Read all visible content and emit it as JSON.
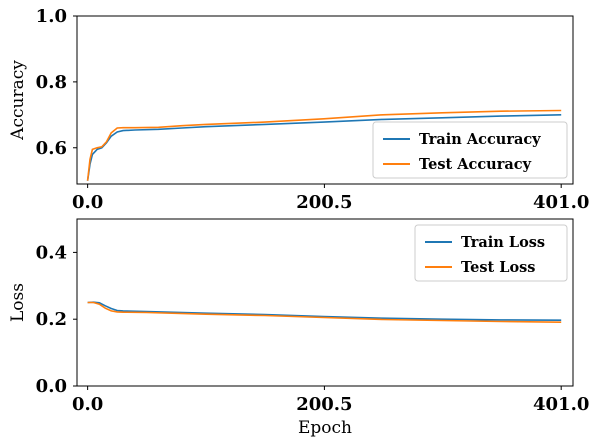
{
  "chart_data": [
    {
      "type": "line",
      "title": "",
      "xlabel": "",
      "ylabel": "Accuracy",
      "xlim": [
        -9,
        411
      ],
      "ylim": [
        0.49,
        1.0
      ],
      "xticks": [
        0.0,
        200.5,
        401.0
      ],
      "xtick_labels": [
        "0.0",
        "200.5",
        "401.0"
      ],
      "yticks": [
        0.6,
        0.8,
        1.0
      ],
      "ytick_labels": [
        "0.6",
        "0.8",
        "1.0"
      ],
      "legend_position": "lower-right",
      "grid": false,
      "series": [
        {
          "name": "Train Accuracy",
          "color": "#1f77b4",
          "x": [
            0,
            2,
            4,
            8,
            12,
            16,
            20,
            25,
            30,
            40,
            60,
            80,
            100,
            150,
            200,
            250,
            300,
            350,
            401
          ],
          "y": [
            0.5,
            0.55,
            0.58,
            0.595,
            0.6,
            0.615,
            0.635,
            0.648,
            0.652,
            0.654,
            0.656,
            0.66,
            0.664,
            0.671,
            0.678,
            0.686,
            0.691,
            0.696,
            0.7
          ]
        },
        {
          "name": "Test Accuracy",
          "color": "#ff7f0e",
          "x": [
            0,
            2,
            4,
            8,
            12,
            16,
            20,
            25,
            30,
            40,
            60,
            80,
            100,
            150,
            200,
            250,
            300,
            350,
            401
          ],
          "y": [
            0.5,
            0.565,
            0.595,
            0.6,
            0.603,
            0.618,
            0.645,
            0.66,
            0.661,
            0.661,
            0.662,
            0.667,
            0.671,
            0.678,
            0.688,
            0.7,
            0.706,
            0.711,
            0.713
          ]
        }
      ]
    },
    {
      "type": "line",
      "title": "",
      "xlabel": "Epoch",
      "ylabel": "Loss",
      "xlim": [
        -9,
        411
      ],
      "ylim": [
        0.0,
        0.5
      ],
      "xticks": [
        0.0,
        200.5,
        401.0
      ],
      "xtick_labels": [
        "0.0",
        "200.5",
        "401.0"
      ],
      "yticks": [
        0.0,
        0.2,
        0.4
      ],
      "ytick_labels": [
        "0.0",
        "0.2",
        "0.4"
      ],
      "legend_position": "upper-right",
      "grid": false,
      "series": [
        {
          "name": "Train Loss",
          "color": "#1f77b4",
          "x": [
            0,
            5,
            10,
            15,
            20,
            25,
            30,
            50,
            100,
            150,
            200,
            250,
            300,
            350,
            401
          ],
          "y": [
            0.25,
            0.251,
            0.249,
            0.24,
            0.232,
            0.226,
            0.225,
            0.223,
            0.218,
            0.214,
            0.208,
            0.203,
            0.2,
            0.198,
            0.197
          ]
        },
        {
          "name": "Test Loss",
          "color": "#ff7f0e",
          "x": [
            0,
            5,
            10,
            15,
            20,
            25,
            30,
            50,
            100,
            150,
            200,
            250,
            300,
            350,
            401
          ],
          "y": [
            0.25,
            0.25,
            0.245,
            0.233,
            0.225,
            0.222,
            0.221,
            0.22,
            0.215,
            0.211,
            0.205,
            0.199,
            0.196,
            0.193,
            0.191
          ]
        }
      ]
    }
  ]
}
